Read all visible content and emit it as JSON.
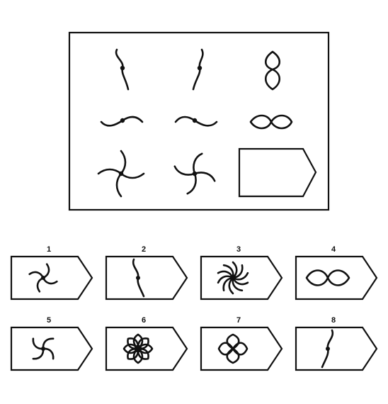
{
  "matrix": {
    "rows": [
      [
        "wave-vertical-left",
        "wave-vertical-right",
        "loop-vertical"
      ],
      [
        "wave-horizontal-up",
        "wave-horizontal-down",
        "loop-horizontal"
      ],
      [
        "pinwheel-four",
        "pinwheel-four-open",
        "missing"
      ]
    ]
  },
  "answers": [
    {
      "number": "1",
      "figure": "pinwheel-four"
    },
    {
      "number": "2",
      "figure": "wave-vertical-left"
    },
    {
      "number": "3",
      "figure": "pinwheel-many"
    },
    {
      "number": "4",
      "figure": "loop-horizontal"
    },
    {
      "number": "5",
      "figure": "pinwheel-three"
    },
    {
      "number": "6",
      "figure": "flower-eight"
    },
    {
      "number": "7",
      "figure": "flower-four"
    },
    {
      "number": "8",
      "figure": "wave-vertical-right"
    }
  ],
  "colors": {
    "ink": "#111111",
    "background": "#ffffff"
  }
}
